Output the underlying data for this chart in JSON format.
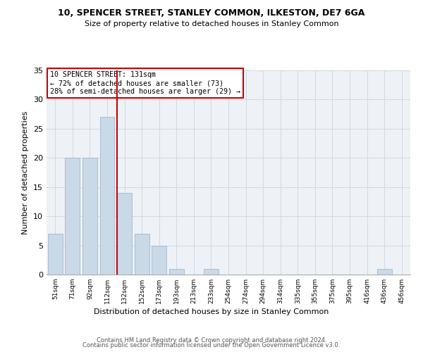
{
  "title": "10, SPENCER STREET, STANLEY COMMON, ILKESTON, DE7 6GA",
  "subtitle": "Size of property relative to detached houses in Stanley Common",
  "xlabel": "Distribution of detached houses by size in Stanley Common",
  "ylabel": "Number of detached properties",
  "bar_categories": [
    "51sqm",
    "71sqm",
    "92sqm",
    "112sqm",
    "132sqm",
    "152sqm",
    "173sqm",
    "193sqm",
    "213sqm",
    "233sqm",
    "254sqm",
    "274sqm",
    "294sqm",
    "314sqm",
    "335sqm",
    "355sqm",
    "375sqm",
    "395sqm",
    "416sqm",
    "436sqm",
    "456sqm"
  ],
  "bar_values": [
    7,
    20,
    20,
    27,
    14,
    7,
    5,
    1,
    0,
    1,
    0,
    0,
    0,
    0,
    0,
    0,
    0,
    0,
    0,
    1,
    0
  ],
  "bar_color": "#c9d9e8",
  "bar_edge_color": "#a0b8cc",
  "grid_color": "#d0d8e0",
  "background_color": "#eef2f7",
  "vline_color": "#cc0000",
  "vline_x": 3.575,
  "annotation_text": "10 SPENCER STREET: 131sqm\n← 72% of detached houses are smaller (73)\n28% of semi-detached houses are larger (29) →",
  "annotation_box_color": "#ffffff",
  "annotation_box_edge": "#cc0000",
  "ylim": [
    0,
    35
  ],
  "yticks": [
    0,
    5,
    10,
    15,
    20,
    25,
    30,
    35
  ],
  "footer_line1": "Contains HM Land Registry data © Crown copyright and database right 2024.",
  "footer_line2": "Contains public sector information licensed under the Open Government Licence v3.0."
}
